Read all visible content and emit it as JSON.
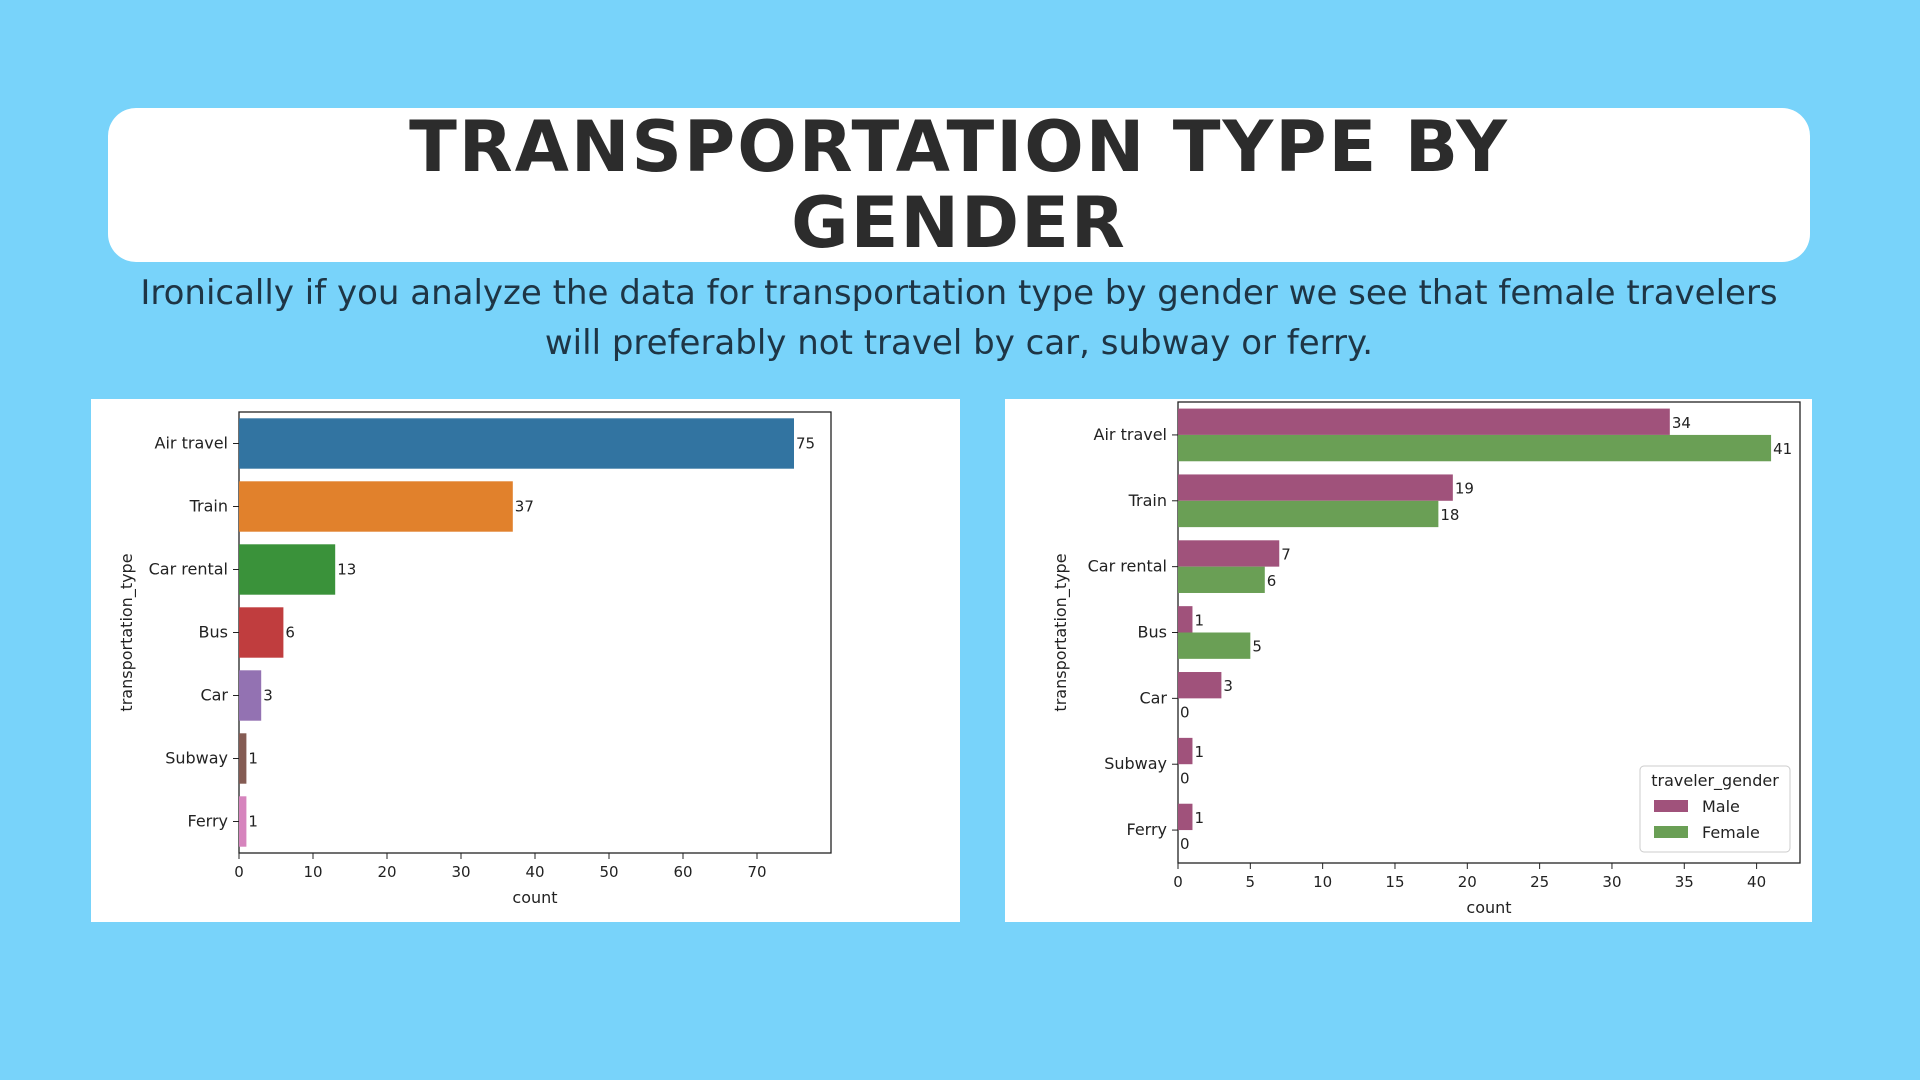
{
  "title": "TRANSPORTATION TYPE BY GENDER",
  "subtitle": "Ironically if you analyze the data for transportation type by gender we see that female travelers will preferably not travel by car, subway or ferry.",
  "chart_data": [
    {
      "type": "bar",
      "orientation": "horizontal",
      "categories": [
        "Air travel",
        "Train",
        "Car rental",
        "Bus",
        "Car",
        "Subway",
        "Ferry"
      ],
      "values": [
        75,
        37,
        13,
        6,
        3,
        1,
        1
      ],
      "colors": [
        "#3274a1",
        "#e1812c",
        "#3a923a",
        "#c03d3e",
        "#9372b2",
        "#845b53",
        "#d684bd"
      ],
      "data_labels": [
        "75",
        "37",
        "13",
        "6",
        "3",
        "1",
        "1"
      ],
      "xlabel": "count",
      "ylabel": "transportation_type",
      "xlim": [
        0,
        80
      ],
      "xticks": [
        0,
        10,
        20,
        30,
        40,
        50,
        60,
        70
      ],
      "grid": false
    },
    {
      "type": "bar",
      "orientation": "horizontal",
      "categories": [
        "Air travel",
        "Train",
        "Car rental",
        "Bus",
        "Car",
        "Subway",
        "Ferry"
      ],
      "series": [
        {
          "name": "Male",
          "values": [
            34,
            19,
            7,
            1,
            3,
            1,
            1
          ],
          "color": "#a0527b"
        },
        {
          "name": "Female",
          "values": [
            41,
            18,
            6,
            5,
            0,
            0,
            0
          ],
          "color": "#6a9f55"
        }
      ],
      "xlabel": "count",
      "ylabel": "transportation_type",
      "xlim": [
        0,
        43
      ],
      "xticks": [
        0,
        5,
        10,
        15,
        20,
        25,
        30,
        35,
        40
      ],
      "legend": {
        "title": "traveler_gender",
        "placement": "bottom-right"
      },
      "grid": false
    }
  ]
}
